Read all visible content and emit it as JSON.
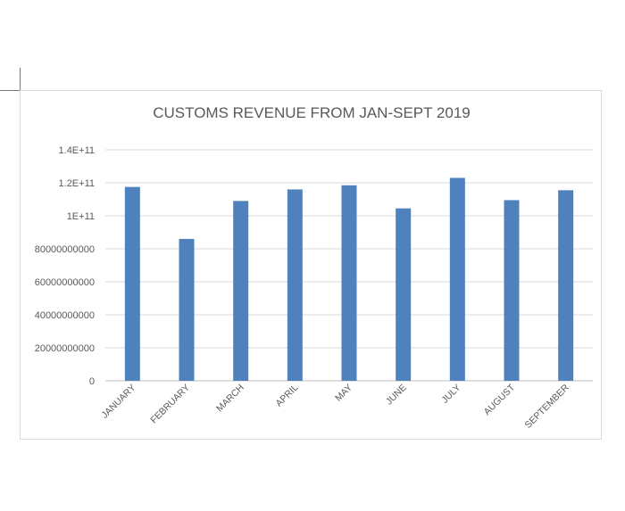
{
  "chart_data": {
    "type": "bar",
    "title": "CUSTOMS REVENUE FROM JAN-SEPT 2019",
    "xlabel": "",
    "ylabel": "",
    "categories": [
      "JANUARY",
      "FEBRUARY",
      "MARCH",
      "APRIL",
      "MAY",
      "JUNE",
      "JULY",
      "AUGUST",
      "SEPTEMBER"
    ],
    "values": [
      117500000000,
      86000000000,
      109000000000,
      116000000000,
      118500000000,
      104500000000,
      123000000000,
      109500000000,
      115500000000
    ],
    "ylim": [
      0,
      140000000000
    ],
    "yticks": [
      0,
      20000000000,
      40000000000,
      60000000000,
      80000000000,
      100000000000,
      120000000000,
      140000000000
    ],
    "ytick_labels": [
      "0",
      "20000000000",
      "40000000000",
      "60000000000",
      "80000000000",
      "1E+11",
      "1.2E+11",
      "1.4E+11"
    ],
    "bar_color": "#4f81bd",
    "grid": true,
    "legend": "none"
  }
}
